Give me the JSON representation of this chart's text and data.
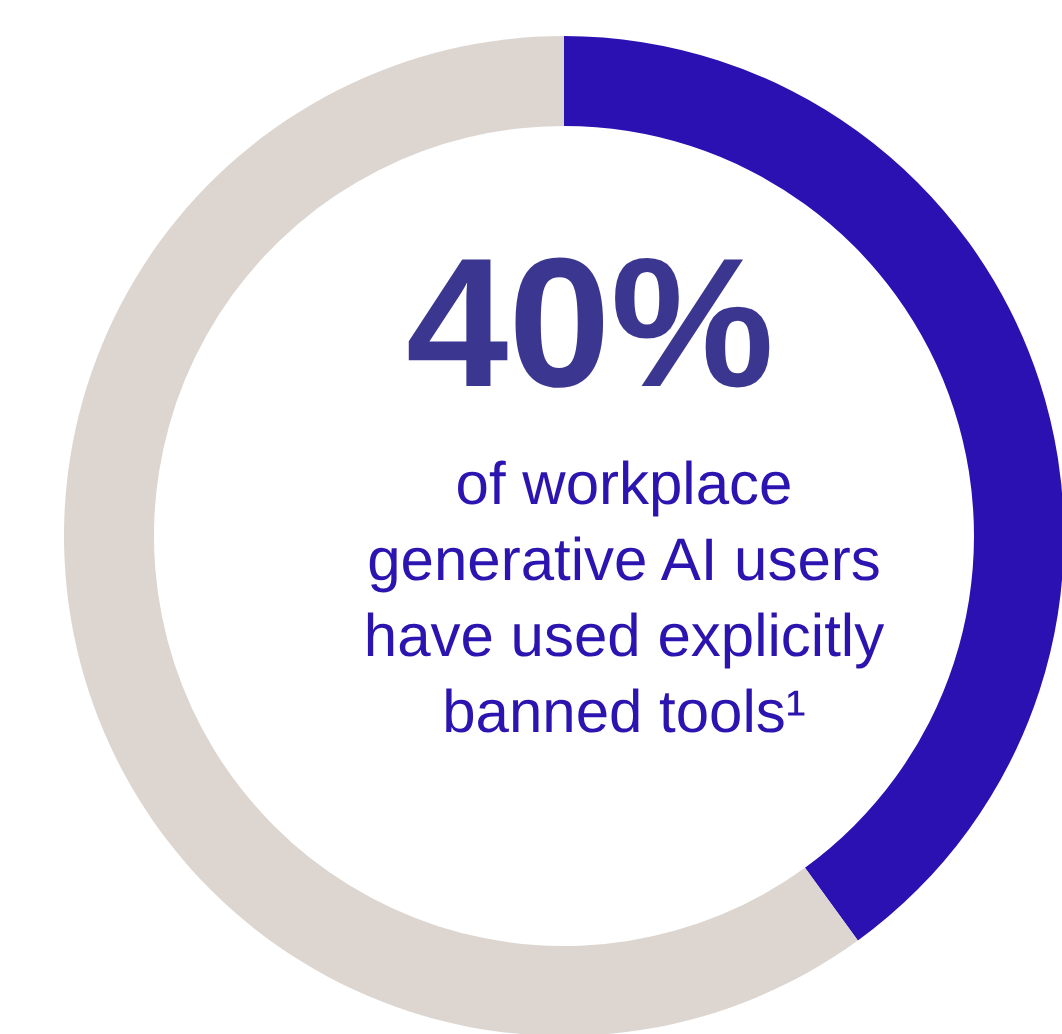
{
  "chart_data": {
    "type": "donut",
    "categories": [
      null,
      null
    ],
    "values": [
      40,
      60
    ],
    "colors": [
      "#2b10b2",
      "#ddd6d0"
    ],
    "value_labels": [
      "40%",
      null
    ],
    "annotations": [
      "of workplace generative AI users have used explicitly banned tools¹"
    ]
  }
}
